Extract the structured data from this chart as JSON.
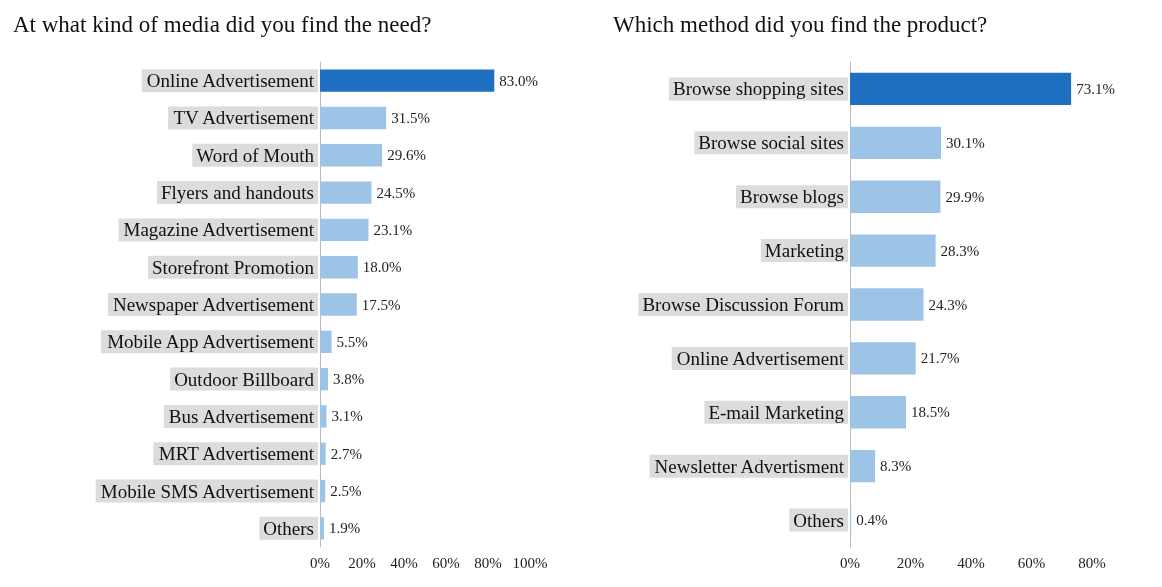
{
  "chart_data": [
    {
      "type": "bar",
      "orientation": "horizontal",
      "title": "At what kind of media did you find the need?",
      "categories": [
        "Online Advertisement",
        "TV Advertisement",
        "Word of Mouth",
        "Flyers and handouts",
        "Magazine Advertisement",
        "Storefront Promotion",
        "Newspaper Advertisement",
        "Mobile App Advertisement",
        "Outdoor Billboard",
        "Bus Advertisement",
        "MRT Advertisement",
        "Mobile SMS Advertisement",
        "Others"
      ],
      "values": [
        83.0,
        31.5,
        29.6,
        24.5,
        23.1,
        18.0,
        17.5,
        5.5,
        3.8,
        3.1,
        2.7,
        2.5,
        1.9
      ],
      "value_labels": [
        "83.0%",
        "31.5%",
        "29.6%",
        "24.5%",
        "23.1%",
        "18.0%",
        "17.5%",
        "5.5%",
        "3.8%",
        "3.1%",
        "2.7%",
        "2.5%",
        "1.9%"
      ],
      "colors": [
        "#1f6fc0",
        "#9dc3e6",
        "#9dc3e6",
        "#9dc3e6",
        "#9dc3e6",
        "#9dc3e6",
        "#9dc3e6",
        "#9dc3e6",
        "#9dc3e6",
        "#9dc3e6",
        "#9dc3e6",
        "#9dc3e6",
        "#9dc3e6"
      ],
      "xlim": [
        0,
        100
      ],
      "xticks": [
        {
          "value": 0,
          "label": "0%"
        },
        {
          "value": 20,
          "label": "20%"
        },
        {
          "value": 40,
          "label": "40%"
        },
        {
          "value": 60,
          "label": "60%"
        },
        {
          "value": 80,
          "label": "80%"
        },
        {
          "value": 100,
          "label": "100%"
        }
      ],
      "grid": false
    },
    {
      "type": "bar",
      "orientation": "horizontal",
      "title": "Which method did you find the product?",
      "categories": [
        "Browse shopping sites",
        "Browse social sites",
        "Browse blogs",
        "Marketing",
        "Browse Discussion Forum",
        "Online Advertisement",
        "E-mail Marketing",
        "Newsletter Advertisment",
        "Others"
      ],
      "values": [
        73.1,
        30.1,
        29.9,
        28.3,
        24.3,
        21.7,
        18.5,
        8.3,
        0.4
      ],
      "value_labels": [
        "73.1%",
        "30.1%",
        "29.9%",
        "28.3%",
        "24.3%",
        "21.7%",
        "18.5%",
        "8.3%",
        "0.4%"
      ],
      "colors": [
        "#1f6fc0",
        "#9dc3e6",
        "#9dc3e6",
        "#9dc3e6",
        "#9dc3e6",
        "#9dc3e6",
        "#9dc3e6",
        "#9dc3e6",
        "#9dc3e6"
      ],
      "xlim": [
        0,
        80
      ],
      "xticks": [
        {
          "value": 0,
          "label": "0%"
        },
        {
          "value": 20,
          "label": "20%"
        },
        {
          "value": 40,
          "label": "40%"
        },
        {
          "value": 60,
          "label": "60%"
        },
        {
          "value": 80,
          "label": "80%"
        }
      ],
      "grid": false
    }
  ]
}
